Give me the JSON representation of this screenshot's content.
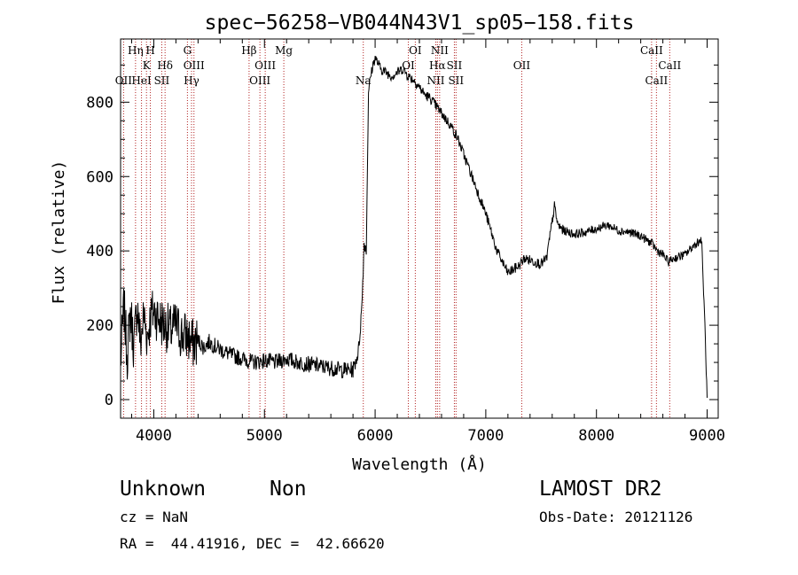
{
  "chart_data": {
    "type": "line",
    "title": "spec−56258−VB044N43V1_sp05−158.fits",
    "xlabel": "Wavelength (Å)",
    "ylabel": "Flux (relative)",
    "xlim": [
      3700,
      9100
    ],
    "ylim": [
      -50,
      970
    ],
    "xticks": [
      4000,
      5000,
      6000,
      7000,
      8000,
      9000
    ],
    "yticks": [
      0,
      200,
      400,
      600,
      800
    ],
    "series": [
      {
        "x": [
          3700,
          3730,
          3760,
          3790,
          3820,
          3850,
          3880,
          3910,
          3940,
          3970,
          4000,
          4050,
          4100,
          4150,
          4200,
          4250,
          4300,
          4350,
          4400,
          4450,
          4500,
          4600,
          4700,
          4800,
          4900,
          5000,
          5100,
          5200,
          5300,
          5400,
          5500,
          5600,
          5700,
          5800,
          5850,
          5880,
          5900,
          5920,
          5940,
          5960,
          5980,
          6000,
          6050,
          6100,
          6150,
          6200,
          6250,
          6300,
          6350,
          6400,
          6450,
          6500,
          6550,
          6600,
          6650,
          6700,
          6750,
          6800,
          6850,
          6900,
          6950,
          7000,
          7050,
          7100,
          7150,
          7200,
          7250,
          7300,
          7350,
          7400,
          7450,
          7500,
          7550,
          7600,
          7620,
          7650,
          7700,
          7800,
          7900,
          8000,
          8100,
          8200,
          8300,
          8400,
          8500,
          8550,
          8600,
          8650,
          8700,
          8800,
          8900,
          8950,
          8980,
          9000
        ],
        "y": [
          100,
          250,
          120,
          240,
          140,
          260,
          150,
          230,
          170,
          220,
          240,
          215,
          200,
          185,
          200,
          175,
          170,
          150,
          160,
          140,
          155,
          135,
          120,
          110,
          100,
          105,
          100,
          110,
          100,
          95,
          90,
          85,
          80,
          80,
          130,
          250,
          420,
          400,
          830,
          870,
          900,
          920,
          890,
          880,
          870,
          880,
          890,
          870,
          860,
          840,
          820,
          810,
          790,
          770,
          750,
          730,
          700,
          660,
          620,
          580,
          540,
          500,
          450,
          400,
          370,
          340,
          350,
          360,
          380,
          375,
          370,
          365,
          380,
          480,
          520,
          470,
          455,
          445,
          450,
          460,
          470,
          455,
          450,
          440,
          420,
          400,
          390,
          370,
          380,
          390,
          420,
          430,
          200,
          0
        ]
      }
    ],
    "lines": [
      {
        "label": "OII",
        "x": 3727,
        "row": 3
      },
      {
        "label": "Hη",
        "x": 3835,
        "row": 1
      },
      {
        "label": "HeI",
        "x": 3889,
        "row": 3
      },
      {
        "label": "K",
        "x": 3934,
        "row": 2
      },
      {
        "label": "H",
        "x": 3969,
        "row": 1
      },
      {
        "label": "SII",
        "x": 4072,
        "row": 3
      },
      {
        "label": "Hδ",
        "x": 4102,
        "row": 2
      },
      {
        "label": "G",
        "x": 4304,
        "row": 1
      },
      {
        "label": "Hγ",
        "x": 4341,
        "row": 3
      },
      {
        "label": "OIII",
        "x": 4363,
        "row": 2
      },
      {
        "label": "Hβ",
        "x": 4861,
        "row": 1
      },
      {
        "label": "OIII",
        "x": 4959,
        "row": 3
      },
      {
        "label": "OIII",
        "x": 5007,
        "row": 2
      },
      {
        "label": "Mg",
        "x": 5175,
        "row": 1
      },
      {
        "label": "Na",
        "x": 5893,
        "row": 3
      },
      {
        "label": "OI",
        "x": 6300,
        "row": 2
      },
      {
        "label": "OI",
        "x": 6363,
        "row": 1
      },
      {
        "label": "NII",
        "x": 6548,
        "row": 3
      },
      {
        "label": "Hα",
        "x": 6563,
        "row": 2
      },
      {
        "label": "NII",
        "x": 6583,
        "row": 1
      },
      {
        "label": "SII",
        "x": 6716,
        "row": 2
      },
      {
        "label": "SII",
        "x": 6731,
        "row": 3
      },
      {
        "label": "OII",
        "x": 7325,
        "row": 2
      },
      {
        "label": "CaII",
        "x": 8498,
        "row": 1
      },
      {
        "label": "CaII",
        "x": 8542,
        "row": 3
      },
      {
        "label": "CaII",
        "x": 8662,
        "row": 2
      }
    ]
  },
  "info": {
    "object_class": "Unknown",
    "subclass": "Non",
    "survey": "LAMOST DR2",
    "redshift": "cz = NaN",
    "obs_date": "Obs-Date: 20121126",
    "coords": "RA =  44.41916, DEC =  42.66620"
  },
  "colors": {
    "line": "#000000",
    "marker": "#b22222"
  }
}
